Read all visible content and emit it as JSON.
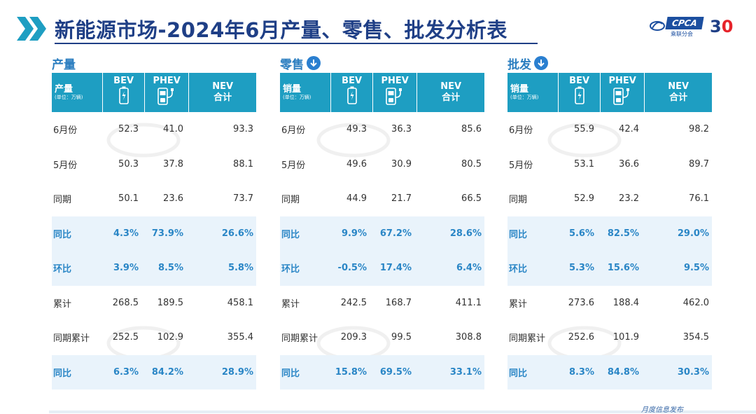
{
  "title": "新能源市场-2024年6月产量、零售、批发分析表",
  "logo": {
    "brand": "CPCA",
    "brand_cn": "乘联分会",
    "anniversary": "3",
    "anniversary_o": "0"
  },
  "footer": "月度信息发布",
  "colors": {
    "header_bg": "#1e9ec2",
    "accent": "#2a86c6",
    "title": "#1f3f86",
    "highlight_row": "#e9f3fb"
  },
  "columns": {
    "bev": "BEV",
    "phev": "PHEV",
    "nev_line1": "NEV",
    "nev_line2": "合计",
    "unit": "(单位：万辆)"
  },
  "sections": [
    {
      "title": "产量",
      "header_label": "产量",
      "has_icon": false,
      "rows": [
        {
          "label": "6月份",
          "bev": "52.3",
          "phev": "41.0",
          "nev": "93.3",
          "hl": false
        },
        {
          "label": "5月份",
          "bev": "50.3",
          "phev": "37.8",
          "nev": "88.1",
          "hl": false
        },
        {
          "label": "同期",
          "bev": "50.1",
          "phev": "23.6",
          "nev": "73.7",
          "hl": false
        },
        {
          "label": "同比",
          "bev": "4.3%",
          "phev": "73.9%",
          "nev": "26.6%",
          "hl": true
        },
        {
          "label": "环比",
          "bev": "3.9%",
          "phev": "8.5%",
          "nev": "5.8%",
          "hl": true
        },
        {
          "label": "累计",
          "bev": "268.5",
          "phev": "189.5",
          "nev": "458.1",
          "hl": false
        },
        {
          "label": "同期累计",
          "bev": "252.5",
          "phev": "102.9",
          "nev": "355.4",
          "hl": false
        },
        {
          "label": "同比",
          "bev": "6.3%",
          "phev": "84.2%",
          "nev": "28.9%",
          "hl": true
        }
      ]
    },
    {
      "title": "零售",
      "header_label": "销量",
      "has_icon": true,
      "rows": [
        {
          "label": "6月份",
          "bev": "49.3",
          "phev": "36.3",
          "nev": "85.6",
          "hl": false
        },
        {
          "label": "5月份",
          "bev": "49.6",
          "phev": "30.9",
          "nev": "80.5",
          "hl": false
        },
        {
          "label": "同期",
          "bev": "44.9",
          "phev": "21.7",
          "nev": "66.5",
          "hl": false
        },
        {
          "label": "同比",
          "bev": "9.9%",
          "phev": "67.2%",
          "nev": "28.6%",
          "hl": true
        },
        {
          "label": "环比",
          "bev": "-0.5%",
          "phev": "17.4%",
          "nev": "6.4%",
          "hl": true
        },
        {
          "label": "累计",
          "bev": "242.5",
          "phev": "168.7",
          "nev": "411.1",
          "hl": false
        },
        {
          "label": "同期累计",
          "bev": "209.3",
          "phev": "99.5",
          "nev": "308.8",
          "hl": false
        },
        {
          "label": "同比",
          "bev": "15.8%",
          "phev": "69.5%",
          "nev": "33.1%",
          "hl": true
        }
      ]
    },
    {
      "title": "批发",
      "header_label": "销量",
      "has_icon": true,
      "rows": [
        {
          "label": "6月份",
          "bev": "55.9",
          "phev": "42.4",
          "nev": "98.2",
          "hl": false
        },
        {
          "label": "5月份",
          "bev": "53.1",
          "phev": "36.6",
          "nev": "89.7",
          "hl": false
        },
        {
          "label": "同期",
          "bev": "52.9",
          "phev": "23.2",
          "nev": "76.1",
          "hl": false
        },
        {
          "label": "同比",
          "bev": "5.6%",
          "phev": "82.5%",
          "nev": "29.0%",
          "hl": true
        },
        {
          "label": "环比",
          "bev": "5.3%",
          "phev": "15.6%",
          "nev": "9.5%",
          "hl": true
        },
        {
          "label": "累计",
          "bev": "273.6",
          "phev": "188.4",
          "nev": "462.0",
          "hl": false
        },
        {
          "label": "同期累计",
          "bev": "252.6",
          "phev": "101.9",
          "nev": "354.5",
          "hl": false
        },
        {
          "label": "同比",
          "bev": "8.3%",
          "phev": "84.8%",
          "nev": "30.3%",
          "hl": true
        }
      ]
    }
  ]
}
